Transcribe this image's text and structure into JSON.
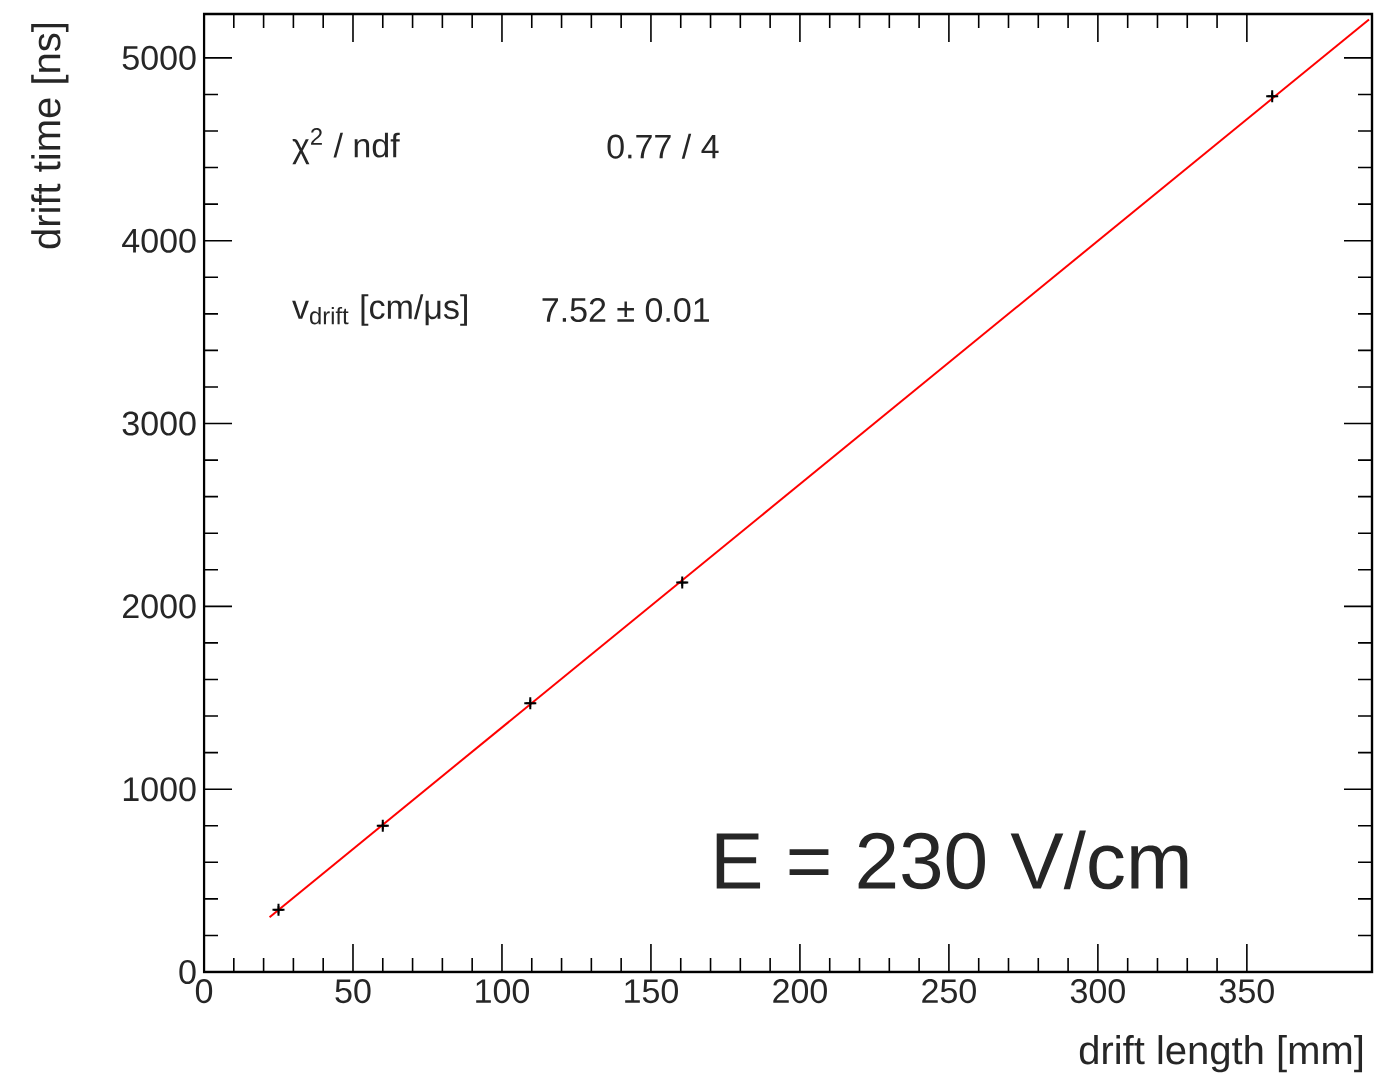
{
  "chart_data": {
    "type": "scatter",
    "xlabel": "drift length [mm]",
    "ylabel": "drift time [ns]",
    "xlim": [
      0,
      392
    ],
    "ylim": [
      0,
      5240
    ],
    "xticks": [
      0,
      50,
      100,
      150,
      200,
      250,
      300,
      350
    ],
    "yticks": [
      0,
      1000,
      2000,
      3000,
      4000,
      5000
    ],
    "series": [
      {
        "color": "#000000",
        "marker": "cross",
        "x": [
          25,
          60,
          109.5,
          160.5,
          358.5
        ],
        "values": [
          340,
          800,
          1470,
          2130,
          4790
        ],
        "errors": [
          20,
          20,
          20,
          20,
          20
        ],
        "xerrors": [
          1.5,
          1.5,
          1.5,
          1.5,
          1.5
        ]
      },
      {
        "type": "line",
        "color": "#ff0000",
        "x": [
          22,
          391
        ],
        "values": [
          300,
          5210
        ]
      }
    ],
    "annotations": [
      "χ$^{2}$ / ndf",
      "0.77 / 4",
      "v$_{drift}$ [cm/μs]",
      "7.52 ± 0.01",
      "E = 230 V/cm"
    ]
  }
}
